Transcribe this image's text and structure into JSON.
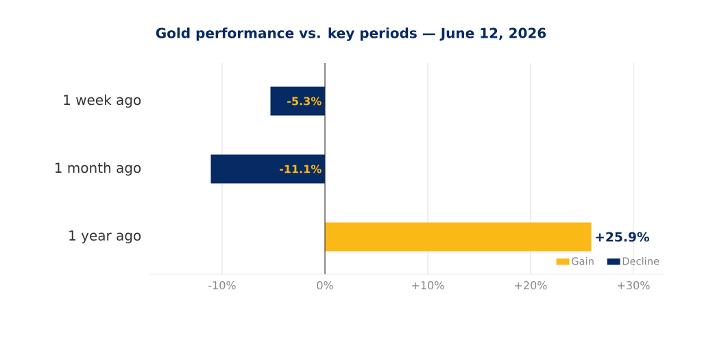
{
  "chart_data": {
    "type": "bar",
    "orientation": "horizontal",
    "title": "Gold performance vs. key periods — June 12, 2026",
    "categories": [
      "1 week ago",
      "1 month ago",
      "1 year ago"
    ],
    "series": [
      {
        "name": "Gain",
        "color": "#fbb917",
        "values": [
          null,
          null,
          25.9
        ],
        "value_labels": [
          null,
          null,
          "+25.9%"
        ]
      },
      {
        "name": "Decline",
        "color": "#062a63",
        "values": [
          -5.3,
          -11.1,
          null
        ],
        "value_labels": [
          "-5.3%",
          "-11.1%",
          null
        ]
      }
    ],
    "xlim": [
      -17,
      33
    ],
    "xticks": [
      {
        "value": -10,
        "label": "-10%"
      },
      {
        "value": 0,
        "label": "0%"
      },
      {
        "value": 10,
        "label": "+10%"
      },
      {
        "value": 20,
        "label": "+20%"
      },
      {
        "value": 30,
        "label": "+30%"
      }
    ],
    "grid": "x",
    "legend": "bottom right"
  }
}
